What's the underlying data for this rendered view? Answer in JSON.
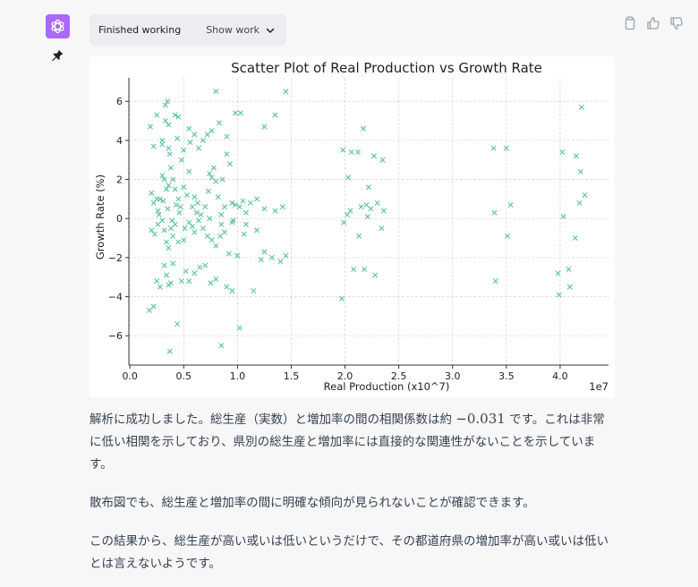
{
  "assistant": {
    "status_label": "Finished working",
    "show_work_label": "Show work"
  },
  "icons": {
    "avatar": "openai-logo-icon",
    "pin": "pin-icon",
    "copy": "clipboard-icon",
    "like": "thumbs-up-icon",
    "dislike": "thumbs-down-icon",
    "expand": "chevron-down-icon"
  },
  "colors": {
    "avatar_bg": "#ab68ff",
    "marker": "#3cb68c"
  },
  "chart_data": {
    "type": "scatter",
    "title": "Scatter Plot of Real Production vs Growth Rate",
    "xlabel": "Real Production (x10^7)",
    "ylabel": "Growth Rate (%)",
    "x_offset_label": "1e7",
    "xlim": [
      -0.01,
      4.45
    ],
    "ylim": [
      -7.5,
      7.2
    ],
    "xticks": [
      0.0,
      0.5,
      1.0,
      1.5,
      2.0,
      2.5,
      3.0,
      3.5,
      4.0
    ],
    "xtick_labels": [
      "0.0",
      "0.5",
      "1.0",
      "1.5",
      "2.0",
      "2.5",
      "3.0",
      "3.5",
      "4.0"
    ],
    "yticks": [
      -6,
      -4,
      -2,
      0,
      2,
      4,
      6
    ],
    "ytick_labels": [
      "−6",
      "−4",
      "−2",
      "0",
      "2",
      "4",
      "6"
    ],
    "grid": true,
    "marker": "x",
    "points": [
      [
        0.19,
        4.7
      ],
      [
        0.22,
        3.7
      ],
      [
        0.25,
        5.3
      ],
      [
        0.3,
        4.0
      ],
      [
        0.33,
        5.8
      ],
      [
        0.35,
        6.0
      ],
      [
        0.33,
        5.0
      ],
      [
        0.36,
        4.8
      ],
      [
        0.37,
        3.3
      ],
      [
        0.42,
        5.3
      ],
      [
        0.45,
        5.2
      ],
      [
        0.48,
        3.0
      ],
      [
        0.55,
        4.6
      ],
      [
        0.6,
        4.3
      ],
      [
        0.68,
        4.0
      ],
      [
        0.72,
        4.3
      ],
      [
        0.76,
        4.5
      ],
      [
        0.83,
        4.9
      ],
      [
        0.9,
        4.2
      ],
      [
        0.98,
        5.4
      ],
      [
        1.03,
        5.4
      ],
      [
        1.25,
        4.7
      ],
      [
        1.35,
        5.3
      ],
      [
        0.8,
        6.5
      ],
      [
        1.45,
        6.5
      ],
      [
        0.2,
        1.3
      ],
      [
        0.22,
        0.8
      ],
      [
        0.25,
        1.0
      ],
      [
        0.26,
        0.4
      ],
      [
        0.28,
        1.0
      ],
      [
        0.3,
        2.2
      ],
      [
        0.32,
        2.0
      ],
      [
        0.34,
        1.5
      ],
      [
        0.36,
        1.7
      ],
      [
        0.38,
        2.6
      ],
      [
        0.4,
        2.0
      ],
      [
        0.42,
        1.5
      ],
      [
        0.45,
        1.0
      ],
      [
        0.47,
        0.6
      ],
      [
        0.5,
        1.6
      ],
      [
        0.53,
        1.2
      ],
      [
        0.55,
        2.4
      ],
      [
        0.58,
        0.6
      ],
      [
        0.6,
        1.1
      ],
      [
        0.63,
        0.8
      ],
      [
        0.66,
        0.2
      ],
      [
        0.7,
        0.6
      ],
      [
        0.73,
        1.4
      ],
      [
        0.76,
        2.1
      ],
      [
        0.78,
        2.6
      ],
      [
        0.8,
        1.9
      ],
      [
        0.82,
        1.1
      ],
      [
        0.85,
        0.2
      ],
      [
        0.88,
        0.6
      ],
      [
        0.9,
        3.3
      ],
      [
        0.93,
        2.8
      ],
      [
        0.95,
        0.8
      ],
      [
        0.98,
        0.7
      ],
      [
        1.02,
        0.6
      ],
      [
        1.05,
        0.9
      ],
      [
        1.08,
        0.3
      ],
      [
        1.12,
        0.8
      ],
      [
        1.18,
        1.0
      ],
      [
        1.25,
        0.5
      ],
      [
        1.35,
        0.4
      ],
      [
        1.42,
        0.6
      ],
      [
        0.2,
        -0.6
      ],
      [
        0.23,
        -0.8
      ],
      [
        0.26,
        -0.3
      ],
      [
        0.3,
        -0.1
      ],
      [
        0.32,
        -0.6
      ],
      [
        0.34,
        -1.2
      ],
      [
        0.36,
        -1.5
      ],
      [
        0.38,
        -0.5
      ],
      [
        0.4,
        -0.9
      ],
      [
        0.42,
        -0.3
      ],
      [
        0.45,
        -1.2
      ],
      [
        0.5,
        -1.1
      ],
      [
        0.55,
        -0.2
      ],
      [
        0.58,
        -0.4
      ],
      [
        0.6,
        -0.7
      ],
      [
        0.64,
        -0.1
      ],
      [
        0.68,
        -0.5
      ],
      [
        0.72,
        -0.9
      ],
      [
        0.76,
        -1.1
      ],
      [
        0.8,
        -1.4
      ],
      [
        0.85,
        -0.3
      ],
      [
        0.88,
        -0.7
      ],
      [
        0.92,
        -1.8
      ],
      [
        0.95,
        -0.2
      ],
      [
        1.0,
        -1.9
      ],
      [
        1.08,
        -0.3
      ],
      [
        1.18,
        -0.6
      ],
      [
        1.25,
        -1.7
      ],
      [
        1.32,
        -2.0
      ],
      [
        1.4,
        -2.2
      ],
      [
        1.45,
        -1.9
      ],
      [
        1.22,
        -2.1
      ],
      [
        0.18,
        -4.7
      ],
      [
        0.22,
        -4.5
      ],
      [
        0.25,
        -3.2
      ],
      [
        0.28,
        -3.5
      ],
      [
        0.32,
        -2.4
      ],
      [
        0.34,
        -2.9
      ],
      [
        0.36,
        -3.4
      ],
      [
        0.38,
        -3.3
      ],
      [
        0.4,
        -2.3
      ],
      [
        0.44,
        -5.4
      ],
      [
        0.48,
        -3.2
      ],
      [
        0.52,
        -2.7
      ],
      [
        0.55,
        -3.2
      ],
      [
        0.6,
        -2.8
      ],
      [
        0.65,
        -2.5
      ],
      [
        0.7,
        -2.4
      ],
      [
        0.75,
        -3.3
      ],
      [
        0.8,
        -3.1
      ],
      [
        0.85,
        -6.5
      ],
      [
        0.9,
        -3.5
      ],
      [
        0.95,
        -3.7
      ],
      [
        1.02,
        -5.6
      ],
      [
        1.15,
        -3.7
      ],
      [
        0.37,
        -6.8
      ],
      [
        0.27,
        0.2
      ],
      [
        0.31,
        0.9
      ],
      [
        0.35,
        0.5
      ],
      [
        0.39,
        -0.1
      ],
      [
        0.43,
        0.7
      ],
      [
        0.46,
        0.3
      ],
      [
        0.51,
        -0.5
      ],
      [
        0.62,
        0.3
      ],
      [
        0.74,
        0.0
      ],
      [
        0.84,
        -0.9
      ],
      [
        0.96,
        -0.1
      ],
      [
        1.06,
        -0.8
      ],
      [
        0.3,
        3.8
      ],
      [
        0.36,
        3.6
      ],
      [
        0.44,
        4.1
      ],
      [
        0.5,
        3.5
      ],
      [
        0.56,
        3.9
      ],
      [
        0.64,
        3.6
      ],
      [
        0.74,
        2.3
      ],
      [
        0.86,
        2.0
      ],
      [
        1.97,
        -4.1
      ],
      [
        1.98,
        3.5
      ],
      [
        1.99,
        -0.2
      ],
      [
        2.02,
        0.2
      ],
      [
        2.03,
        2.1
      ],
      [
        2.05,
        0.4
      ],
      [
        2.06,
        3.4
      ],
      [
        2.08,
        -2.6
      ],
      [
        2.12,
        3.4
      ],
      [
        2.13,
        -0.9
      ],
      [
        2.15,
        0.6
      ],
      [
        2.17,
        4.6
      ],
      [
        2.18,
        -2.6
      ],
      [
        2.2,
        0.7
      ],
      [
        2.21,
        0.1
      ],
      [
        2.22,
        1.6
      ],
      [
        2.24,
        0.5
      ],
      [
        2.27,
        3.2
      ],
      [
        2.28,
        -2.9
      ],
      [
        2.3,
        0.8
      ],
      [
        2.34,
        -0.5
      ],
      [
        2.35,
        3.0
      ],
      [
        2.36,
        0.4
      ],
      [
        3.38,
        3.6
      ],
      [
        3.39,
        0.3
      ],
      [
        3.4,
        -3.2
      ],
      [
        3.5,
        3.6
      ],
      [
        3.51,
        -0.9
      ],
      [
        3.54,
        0.7
      ],
      [
        3.98,
        -2.8
      ],
      [
        3.99,
        -3.9
      ],
      [
        4.02,
        3.4
      ],
      [
        4.03,
        0.1
      ],
      [
        4.08,
        -2.6
      ],
      [
        4.09,
        -3.5
      ],
      [
        4.14,
        -1.0
      ],
      [
        4.15,
        3.2
      ],
      [
        4.18,
        0.8
      ],
      [
        4.19,
        2.4
      ],
      [
        4.2,
        5.7
      ],
      [
        4.23,
        1.2
      ]
    ]
  },
  "answer": {
    "p1_before": "解析に成功しました。総生産（実数）と増加率の間の相関係数は約",
    "p1_math": "−0.031",
    "p1_after": "です。これは非常に低い相関を示しており、県別の総生産と増加率には直接的な関連性がないことを示しています。",
    "p2": "散布図でも、総生産と増加率の間に明確な傾向が見られないことが確認できます。",
    "p3": "この結果から、総生産が高い或いは低いというだけで、その都道府県の増加率が高い或いは低いとは言えないようです。"
  }
}
